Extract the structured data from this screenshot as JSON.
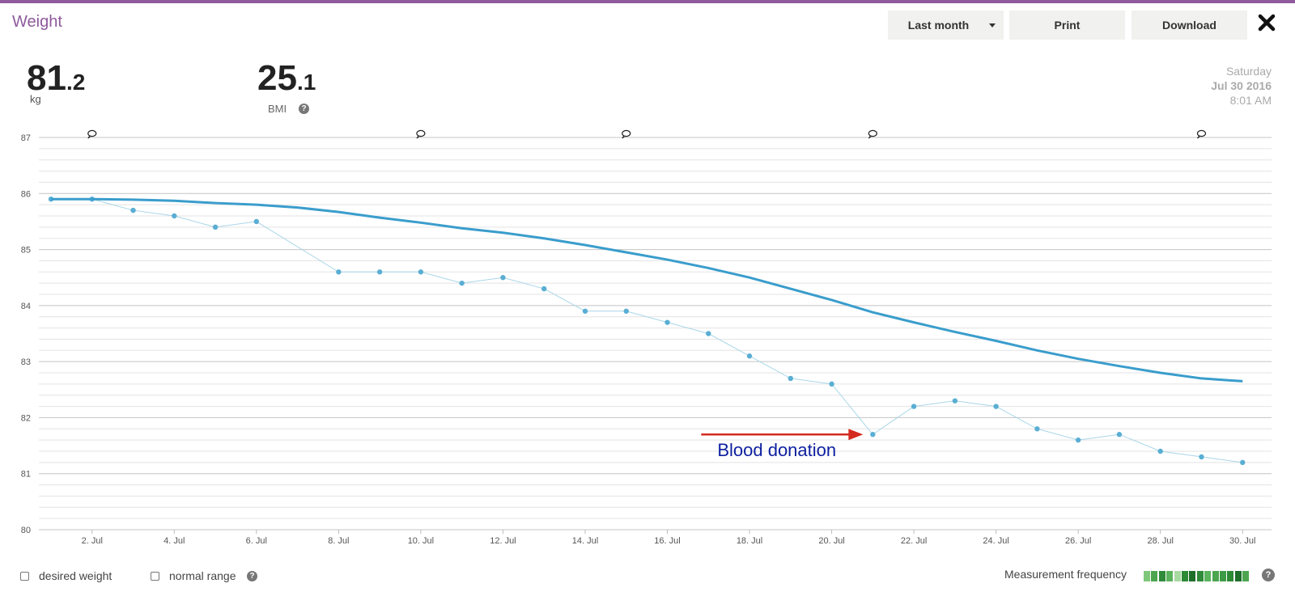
{
  "header": {
    "title": "Weight",
    "period_selector": {
      "selected": "Last month"
    },
    "print_label": "Print",
    "download_label": "Download",
    "close_icon": "close-icon"
  },
  "stats": {
    "weight": {
      "integer": "81",
      "decimal": ".2",
      "unit": "kg"
    },
    "bmi": {
      "integer": "25",
      "decimal": ".1",
      "label": "BMI"
    }
  },
  "date": {
    "weekday": "Saturday",
    "date": "Jul 30 2016",
    "time": "8:01 AM"
  },
  "chart_data": {
    "type": "line",
    "title": "",
    "xlabel": "",
    "ylabel": "",
    "ylim": [
      80,
      87
    ],
    "xlim": [
      "2016-07-01",
      "2016-07-31"
    ],
    "yticks": [
      80,
      81,
      82,
      83,
      84,
      85,
      86,
      87
    ],
    "xticks": [
      {
        "date": "2016-07-02",
        "label": "2. Jul"
      },
      {
        "date": "2016-07-04",
        "label": "4. Jul"
      },
      {
        "date": "2016-07-06",
        "label": "6. Jul"
      },
      {
        "date": "2016-07-08",
        "label": "8. Jul"
      },
      {
        "date": "2016-07-10",
        "label": "10. Jul"
      },
      {
        "date": "2016-07-12",
        "label": "12. Jul"
      },
      {
        "date": "2016-07-14",
        "label": "14. Jul"
      },
      {
        "date": "2016-07-16",
        "label": "16. Jul"
      },
      {
        "date": "2016-07-18",
        "label": "18. Jul"
      },
      {
        "date": "2016-07-20",
        "label": "20. Jul"
      },
      {
        "date": "2016-07-22",
        "label": "22. Jul"
      },
      {
        "date": "2016-07-24",
        "label": "24. Jul"
      },
      {
        "date": "2016-07-26",
        "label": "26. Jul"
      },
      {
        "date": "2016-07-28",
        "label": "28. Jul"
      },
      {
        "date": "2016-07-30",
        "label": "30. Jul"
      }
    ],
    "grid": true,
    "series": [
      {
        "color": "#5aaed3",
        "style": "points",
        "x": [
          "2016-07-01",
          "2016-07-02",
          "2016-07-03",
          "2016-07-04",
          "2016-07-05",
          "2016-07-06",
          "2016-07-08",
          "2016-07-09",
          "2016-07-10",
          "2016-07-11",
          "2016-07-12",
          "2016-07-13",
          "2016-07-14",
          "2016-07-15",
          "2016-07-16",
          "2016-07-17",
          "2016-07-18",
          "2016-07-19",
          "2016-07-20",
          "2016-07-21",
          "2016-07-22",
          "2016-07-23",
          "2016-07-24",
          "2016-07-25",
          "2016-07-26",
          "2016-07-27",
          "2016-07-28",
          "2016-07-29",
          "2016-07-30"
        ],
        "y": [
          85.9,
          85.9,
          85.7,
          85.6,
          85.4,
          85.5,
          84.6,
          84.6,
          84.6,
          84.4,
          84.5,
          84.3,
          83.9,
          83.9,
          83.7,
          83.5,
          83.1,
          82.7,
          82.6,
          81.7,
          82.2,
          82.3,
          82.2,
          81.8,
          81.6,
          81.7,
          81.4,
          81.3,
          81.2
        ]
      },
      {
        "color": "#3a9dcc",
        "style": "trend",
        "x": [
          "2016-07-01",
          "2016-07-02",
          "2016-07-03",
          "2016-07-04",
          "2016-07-05",
          "2016-07-06",
          "2016-07-07",
          "2016-07-08",
          "2016-07-09",
          "2016-07-10",
          "2016-07-11",
          "2016-07-12",
          "2016-07-13",
          "2016-07-14",
          "2016-07-15",
          "2016-07-16",
          "2016-07-17",
          "2016-07-18",
          "2016-07-19",
          "2016-07-20",
          "2016-07-21",
          "2016-07-22",
          "2016-07-23",
          "2016-07-24",
          "2016-07-25",
          "2016-07-26",
          "2016-07-27",
          "2016-07-28",
          "2016-07-29",
          "2016-07-30"
        ],
        "y": [
          85.9,
          85.9,
          85.89,
          85.87,
          85.83,
          85.8,
          85.75,
          85.67,
          85.57,
          85.48,
          85.38,
          85.3,
          85.2,
          85.08,
          84.95,
          84.82,
          84.67,
          84.5,
          84.3,
          84.1,
          83.88,
          83.7,
          83.53,
          83.37,
          83.2,
          83.05,
          82.92,
          82.8,
          82.7,
          82.65
        ]
      }
    ],
    "annotations": [
      {
        "text": "Blood donation",
        "x": "2016-07-21",
        "y": 81.7,
        "color": "#0d1fa0",
        "arrow_color": "#d42a20"
      }
    ],
    "note_markers": [
      "2016-07-02",
      "2016-07-10",
      "2016-07-15",
      "2016-07-21",
      "2016-07-29"
    ]
  },
  "footer": {
    "desired_weight_label": "desired weight",
    "normal_range_label": "normal range",
    "measurement_frequency_label": "Measurement frequency",
    "frequency_colors": [
      "#7fc77a",
      "#4da64f",
      "#2f8a3a",
      "#5bb35d",
      "#a8d9a0",
      "#2d8a35",
      "#1f6e2a",
      "#2f8a3a",
      "#5bb35d",
      "#4da64f",
      "#3d9b45",
      "#2d8a35",
      "#1f6e2a",
      "#4da64f"
    ]
  }
}
